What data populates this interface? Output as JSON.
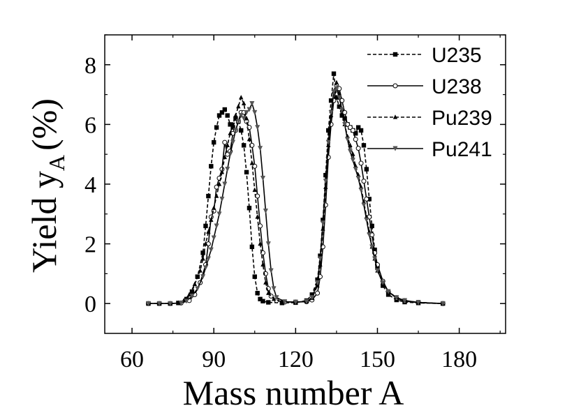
{
  "chart_data": {
    "type": "line",
    "title": "",
    "xlabel": "Mass number A",
    "ylabel_main": "Yield y",
    "ylabel_sub": "A",
    "ylabel_unit": "(%)",
    "xlim": [
      50,
      197
    ],
    "ylim": [
      -1,
      9
    ],
    "x_ticks": [
      60,
      90,
      120,
      150,
      180
    ],
    "y_ticks": [
      0,
      2,
      4,
      6,
      8
    ],
    "x_tick_labels": [
      "60",
      "90",
      "120",
      "150",
      "180"
    ],
    "y_tick_labels": [
      "0",
      "2",
      "4",
      "6",
      "8"
    ],
    "grid": false,
    "legend_position": "top-right",
    "series": [
      {
        "name": "U235",
        "line_style": "dashed",
        "marker": "square",
        "points": [
          [
            66,
            0
          ],
          [
            70,
            0
          ],
          [
            74,
            0
          ],
          [
            77,
            0.02
          ],
          [
            80,
            0.15
          ],
          [
            82,
            0.4
          ],
          [
            84,
            0.9
          ],
          [
            86,
            1.7
          ],
          [
            87,
            2.6
          ],
          [
            88,
            3.6
          ],
          [
            89,
            4.6
          ],
          [
            90,
            5.4
          ],
          [
            91,
            5.9
          ],
          [
            92,
            6.3
          ],
          [
            93,
            6.4
          ],
          [
            94,
            6.5
          ],
          [
            95,
            6.3
          ],
          [
            96,
            6.0
          ],
          [
            97,
            5.9
          ],
          [
            98,
            6.2
          ],
          [
            99,
            6.1
          ],
          [
            100,
            5.8
          ],
          [
            101,
            5.3
          ],
          [
            102,
            4.4
          ],
          [
            103,
            3.2
          ],
          [
            104,
            1.9
          ],
          [
            105,
            0.9
          ],
          [
            106,
            0.35
          ],
          [
            107,
            0.15
          ],
          [
            108,
            0.08
          ],
          [
            110,
            0.04
          ],
          [
            115,
            0.02
          ],
          [
            120,
            0.03
          ],
          [
            124,
            0.1
          ],
          [
            126,
            0.3
          ],
          [
            128,
            0.8
          ],
          [
            129,
            1.6
          ],
          [
            130,
            2.8
          ],
          [
            131,
            4.3
          ],
          [
            132,
            5.8
          ],
          [
            133,
            6.8
          ],
          [
            134,
            7.7
          ],
          [
            135,
            6.9
          ],
          [
            136,
            6.6
          ],
          [
            137,
            6.3
          ],
          [
            138,
            6.2
          ],
          [
            139,
            6.0
          ],
          [
            140,
            5.9
          ],
          [
            141,
            5.8
          ],
          [
            142,
            5.7
          ],
          [
            143,
            5.9
          ],
          [
            144,
            5.8
          ],
          [
            145,
            5.3
          ],
          [
            146,
            4.5
          ],
          [
            147,
            3.5
          ],
          [
            148,
            2.6
          ],
          [
            149,
            1.8
          ],
          [
            150,
            1.2
          ],
          [
            152,
            0.6
          ],
          [
            154,
            0.3
          ],
          [
            157,
            0.12
          ],
          [
            160,
            0.05
          ],
          [
            165,
            0.02
          ],
          [
            174,
            0
          ]
        ]
      },
      {
        "name": "U238",
        "line_style": "solid",
        "marker": "circle",
        "points": [
          [
            66,
            0
          ],
          [
            70,
            0
          ],
          [
            74,
            0
          ],
          [
            78,
            0.02
          ],
          [
            81,
            0.1
          ],
          [
            83,
            0.3
          ],
          [
            85,
            0.7
          ],
          [
            87,
            1.3
          ],
          [
            88,
            2.0
          ],
          [
            89,
            2.9
          ],
          [
            90,
            3.1
          ],
          [
            91,
            3.9
          ],
          [
            92,
            4.2
          ],
          [
            93,
            4.5
          ],
          [
            94,
            5.4
          ],
          [
            95,
            5.0
          ],
          [
            96,
            5.1
          ],
          [
            97,
            5.7
          ],
          [
            98,
            5.8
          ],
          [
            99,
            6.1
          ],
          [
            100,
            6.4
          ],
          [
            101,
            6.4
          ],
          [
            102,
            6.1
          ],
          [
            103,
            5.9
          ],
          [
            104,
            5.3
          ],
          [
            105,
            4.6
          ],
          [
            106,
            3.6
          ],
          [
            107,
            2.6
          ],
          [
            108,
            1.7
          ],
          [
            109,
            1.0
          ],
          [
            110,
            0.5
          ],
          [
            111,
            0.25
          ],
          [
            113,
            0.1
          ],
          [
            116,
            0.05
          ],
          [
            120,
            0.05
          ],
          [
            124,
            0.06
          ],
          [
            126,
            0.12
          ],
          [
            128,
            0.35
          ],
          [
            129,
            0.9
          ],
          [
            130,
            1.9
          ],
          [
            131,
            3.3
          ],
          [
            132,
            4.9
          ],
          [
            133,
            6.0
          ],
          [
            134,
            6.8
          ],
          [
            135,
            7.3
          ],
          [
            136,
            7.2
          ],
          [
            137,
            6.8
          ],
          [
            138,
            6.4
          ],
          [
            139,
            6.0
          ],
          [
            140,
            5.9
          ],
          [
            141,
            5.8
          ],
          [
            142,
            5.5
          ],
          [
            143,
            5.2
          ],
          [
            144,
            4.7
          ],
          [
            145,
            4.1
          ],
          [
            146,
            3.5
          ],
          [
            147,
            2.9
          ],
          [
            148,
            2.3
          ],
          [
            149,
            1.7
          ],
          [
            150,
            1.3
          ],
          [
            152,
            0.75
          ],
          [
            154,
            0.4
          ],
          [
            157,
            0.18
          ],
          [
            160,
            0.08
          ],
          [
            165,
            0.03
          ],
          [
            174,
            0
          ]
        ]
      },
      {
        "name": "Pu239",
        "line_style": "dashed",
        "marker": "triangle",
        "points": [
          [
            66,
            0
          ],
          [
            70,
            0
          ],
          [
            74,
            0
          ],
          [
            77,
            0.02
          ],
          [
            79,
            0.1
          ],
          [
            81,
            0.3
          ],
          [
            83,
            0.65
          ],
          [
            85,
            1.1
          ],
          [
            86,
            1.5
          ],
          [
            87,
            2.0
          ],
          [
            88,
            2.4
          ],
          [
            89,
            2.8
          ],
          [
            90,
            3.2
          ],
          [
            91,
            3.6
          ],
          [
            92,
            4.0
          ],
          [
            93,
            4.4
          ],
          [
            94,
            4.9
          ],
          [
            95,
            5.3
          ],
          [
            96,
            5.7
          ],
          [
            97,
            6.0
          ],
          [
            98,
            6.3
          ],
          [
            99,
            6.6
          ],
          [
            100,
            6.9
          ],
          [
            101,
            6.7
          ],
          [
            102,
            6.2
          ],
          [
            103,
            5.5
          ],
          [
            104,
            4.7
          ],
          [
            105,
            3.8
          ],
          [
            106,
            2.9
          ],
          [
            107,
            2.0
          ],
          [
            108,
            1.3
          ],
          [
            109,
            0.7
          ],
          [
            110,
            0.35
          ],
          [
            112,
            0.15
          ],
          [
            115,
            0.06
          ],
          [
            120,
            0.05
          ],
          [
            124,
            0.07
          ],
          [
            126,
            0.18
          ],
          [
            128,
            0.6
          ],
          [
            129,
            1.3
          ],
          [
            130,
            2.5
          ],
          [
            131,
            3.9
          ],
          [
            132,
            5.3
          ],
          [
            133,
            6.3
          ],
          [
            134,
            7.1
          ],
          [
            135,
            7.4
          ],
          [
            136,
            7.0
          ],
          [
            137,
            6.5
          ],
          [
            138,
            6.0
          ],
          [
            139,
            5.6
          ],
          [
            140,
            5.3
          ],
          [
            141,
            5.0
          ],
          [
            142,
            4.6
          ],
          [
            143,
            4.3
          ],
          [
            144,
            3.9
          ],
          [
            145,
            3.4
          ],
          [
            146,
            2.9
          ],
          [
            147,
            2.4
          ],
          [
            148,
            1.9
          ],
          [
            149,
            1.5
          ],
          [
            150,
            1.1
          ],
          [
            152,
            0.7
          ],
          [
            154,
            0.4
          ],
          [
            157,
            0.2
          ],
          [
            160,
            0.1
          ],
          [
            165,
            0.04
          ],
          [
            174,
            0
          ]
        ]
      },
      {
        "name": "Pu241",
        "line_style": "solid",
        "marker": "inverted-triangle",
        "points": [
          [
            66,
            0
          ],
          [
            70,
            0
          ],
          [
            74,
            0
          ],
          [
            78,
            0.02
          ],
          [
            80,
            0.08
          ],
          [
            82,
            0.25
          ],
          [
            84,
            0.5
          ],
          [
            86,
            0.9
          ],
          [
            87,
            1.2
          ],
          [
            88,
            1.5
          ],
          [
            89,
            1.8
          ],
          [
            90,
            2.2
          ],
          [
            91,
            2.6
          ],
          [
            92,
            3.0
          ],
          [
            93,
            3.5
          ],
          [
            94,
            4.0
          ],
          [
            95,
            4.5
          ],
          [
            96,
            5.0
          ],
          [
            97,
            5.4
          ],
          [
            98,
            5.8
          ],
          [
            99,
            6.1
          ],
          [
            100,
            6.3
          ],
          [
            101,
            6.2
          ],
          [
            102,
            6.4
          ],
          [
            103,
            6.5
          ],
          [
            104,
            6.7
          ],
          [
            105,
            6.4
          ],
          [
            106,
            5.9
          ],
          [
            107,
            5.2
          ],
          [
            108,
            4.2
          ],
          [
            109,
            3.1
          ],
          [
            110,
            2.0
          ],
          [
            111,
            1.1
          ],
          [
            112,
            0.5
          ],
          [
            113,
            0.2
          ],
          [
            116,
            0.06
          ],
          [
            120,
            0.05
          ],
          [
            124,
            0.07
          ],
          [
            126,
            0.2
          ],
          [
            128,
            0.7
          ],
          [
            129,
            1.5
          ],
          [
            130,
            2.7
          ],
          [
            131,
            4.1
          ],
          [
            132,
            5.4
          ],
          [
            133,
            6.4
          ],
          [
            134,
            7.1
          ],
          [
            135,
            7.2
          ],
          [
            136,
            6.9
          ],
          [
            137,
            6.5
          ],
          [
            138,
            6.0
          ],
          [
            139,
            5.5
          ],
          [
            140,
            5.1
          ],
          [
            141,
            4.8
          ],
          [
            142,
            4.5
          ],
          [
            143,
            4.2
          ],
          [
            144,
            3.8
          ],
          [
            145,
            3.3
          ],
          [
            146,
            2.8
          ],
          [
            147,
            2.3
          ],
          [
            148,
            1.9
          ],
          [
            149,
            1.5
          ],
          [
            150,
            1.1
          ],
          [
            152,
            0.7
          ],
          [
            154,
            0.4
          ],
          [
            157,
            0.2
          ],
          [
            160,
            0.1
          ],
          [
            165,
            0.04
          ],
          [
            174,
            0
          ]
        ]
      }
    ]
  }
}
